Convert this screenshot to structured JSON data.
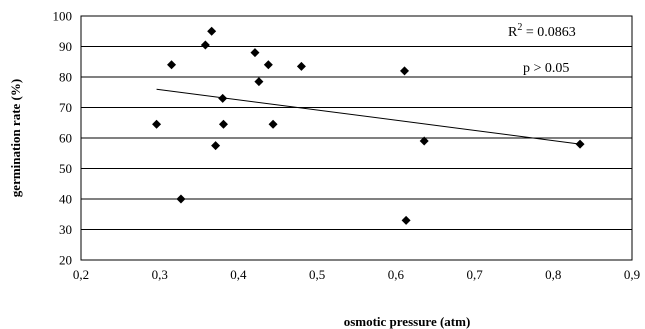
{
  "chart_data": {
    "type": "scatter",
    "xlabel": "osmotic pressure (atm)",
    "ylabel": "germination rate  (%)",
    "xlim": [
      0.2,
      0.9
    ],
    "ylim": [
      20,
      100
    ],
    "x_ticks": [
      "0,2",
      "0,3",
      "0,4",
      "0,5",
      "0,6",
      "0,7",
      "0,8",
      "0,9"
    ],
    "y_ticks": [
      "20",
      "30",
      "40",
      "50",
      "60",
      "70",
      "80",
      "90",
      "100"
    ],
    "grid": "horizontal",
    "legend": "none",
    "points": [
      {
        "x": 0.296,
        "y": 64.5
      },
      {
        "x": 0.315,
        "y": 84
      },
      {
        "x": 0.327,
        "y": 40
      },
      {
        "x": 0.358,
        "y": 90.5
      },
      {
        "x": 0.366,
        "y": 95
      },
      {
        "x": 0.371,
        "y": 57.5
      },
      {
        "x": 0.38,
        "y": 73
      },
      {
        "x": 0.381,
        "y": 64.5
      },
      {
        "x": 0.421,
        "y": 88
      },
      {
        "x": 0.426,
        "y": 78.5
      },
      {
        "x": 0.438,
        "y": 84
      },
      {
        "x": 0.444,
        "y": 64.5
      },
      {
        "x": 0.48,
        "y": 83.5
      },
      {
        "x": 0.611,
        "y": 82
      },
      {
        "x": 0.613,
        "y": 33
      },
      {
        "x": 0.636,
        "y": 59
      },
      {
        "x": 0.834,
        "y": 58
      }
    ],
    "trendline": {
      "x": [
        0.296,
        0.834
      ],
      "y": [
        76,
        58
      ]
    },
    "annotations": {
      "r2_prefix": "R",
      "r2_sup": "2",
      "r2_value": " = 0.0863",
      "p_value": "p > 0.05"
    },
    "colors": {
      "marker": "#000000",
      "line": "#000000",
      "grid": "#000000"
    }
  }
}
